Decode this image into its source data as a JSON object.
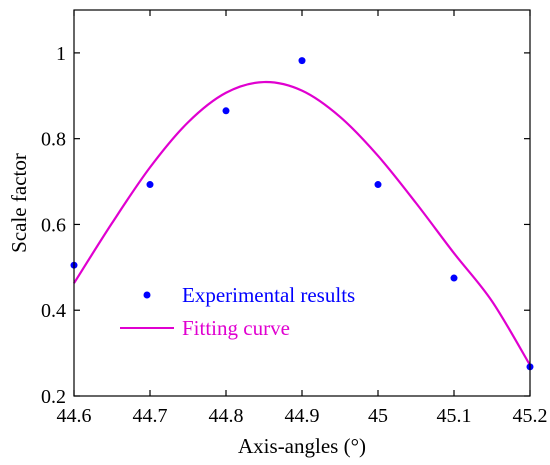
{
  "chart_data": {
    "type": "scatter",
    "title": "",
    "xlabel": "Axis-angles (°)",
    "ylabel": "Scale factor",
    "xlim": [
      44.6,
      45.2
    ],
    "ylim": [
      0.2,
      1.1
    ],
    "x_ticks": [
      44.6,
      44.7,
      44.8,
      44.9,
      45,
      45.1,
      45.2
    ],
    "x_tick_labels": [
      "44.6",
      "44.7",
      "44.8",
      "44.9",
      "45",
      "45.1",
      "45.2"
    ],
    "y_ticks": [
      0.2,
      0.4,
      0.6,
      0.8,
      1.0
    ],
    "y_tick_labels": [
      "0.2",
      "0.4",
      "0.6",
      "0.8",
      "1"
    ],
    "grid": false,
    "legend_position": "bottom-left",
    "series": [
      {
        "name": "Experimental results",
        "kind": "points",
        "color": "#0000ff",
        "x": [
          44.6,
          44.7,
          44.8,
          44.9,
          45.0,
          45.1,
          45.2
        ],
        "y": [
          0.505,
          0.693,
          0.865,
          0.982,
          0.693,
          0.475,
          0.268
        ]
      },
      {
        "name": "Fitting curve",
        "kind": "line",
        "color": "#e000d0",
        "x": [
          44.6,
          44.65,
          44.7,
          44.75,
          44.8,
          44.85,
          44.9,
          44.95,
          45.0,
          45.05,
          45.1,
          45.15,
          45.2
        ],
        "y": [
          0.463,
          0.603,
          0.733,
          0.838,
          0.907,
          0.932,
          0.912,
          0.851,
          0.76,
          0.65,
          0.533,
          0.421,
          0.272
        ]
      }
    ]
  }
}
